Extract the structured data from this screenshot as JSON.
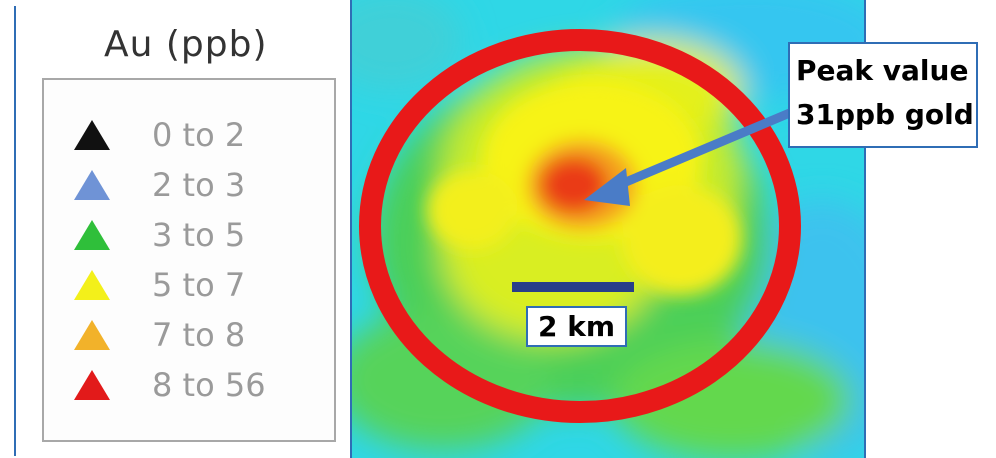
{
  "legend": {
    "title": "Au (ppb)",
    "items": [
      {
        "label": "0 to 2",
        "color": "#111111"
      },
      {
        "label": "2 to 3",
        "color": "#6f93d6"
      },
      {
        "label": "3 to 5",
        "color": "#2fbf3a"
      },
      {
        "label": "5 to 7",
        "color": "#f3f01a"
      },
      {
        "label": "7 to 8",
        "color": "#f2b22a"
      },
      {
        "label": "8 to 56",
        "color": "#e21a1a"
      }
    ]
  },
  "map": {
    "highlight_color": "#e81919"
  },
  "annotation": {
    "line1": "Peak value",
    "line2": "31ppb gold",
    "arrow_color": "#4a7cc7"
  },
  "scale": {
    "label": "2 km",
    "bar_color": "#283e8a"
  }
}
